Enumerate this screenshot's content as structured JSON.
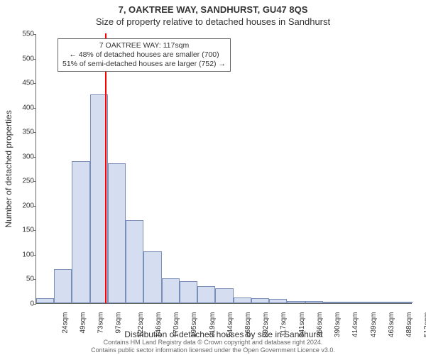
{
  "header": {
    "address": "7, OAKTREE WAY, SANDHURST, GU47 8QS",
    "subtitle": "Size of property relative to detached houses in Sandhurst"
  },
  "chart": {
    "type": "histogram",
    "ylim": [
      0,
      550
    ],
    "ytick_step": 50,
    "yticks": [
      0,
      50,
      100,
      150,
      200,
      250,
      300,
      350,
      400,
      450,
      500,
      550
    ],
    "xlabel": "Distribution of detached houses by size in Sandhurst",
    "ylabel": "Number of detached properties",
    "xticks": [
      "24sqm",
      "49sqm",
      "73sqm",
      "97sqm",
      "122sqm",
      "146sqm",
      "170sqm",
      "195sqm",
      "219sqm",
      "244sqm",
      "268sqm",
      "292sqm",
      "317sqm",
      "341sqm",
      "366sqm",
      "390sqm",
      "414sqm",
      "439sqm",
      "463sqm",
      "488sqm",
      "512sqm"
    ],
    "bar_values": [
      10,
      70,
      290,
      425,
      285,
      170,
      105,
      50,
      45,
      35,
      30,
      12,
      10,
      8,
      5,
      4,
      3,
      2,
      1,
      1,
      1
    ],
    "bar_fill": "#d5def0",
    "bar_stroke": "#7a8fb8",
    "axis_color": "#666666",
    "background_color": "#ffffff",
    "bar_width_ratio": 1.0,
    "ref_line": {
      "at_bin_index_boundary": 3.85,
      "color": "#ff0000",
      "width": 2
    },
    "annotation": {
      "lines": [
        "7 OAKTREE WAY: 117sqm",
        "← 48% of detached houses are smaller (700)",
        "51% of semi-detached houses are larger (752) →"
      ],
      "border": "#666666",
      "bg": "#ffffff",
      "fontsize": 10.5
    }
  },
  "footer": {
    "line1": "Contains HM Land Registry data © Crown copyright and database right 2024.",
    "line2": "Contains public sector information licensed under the Open Government Licence v3.0."
  }
}
